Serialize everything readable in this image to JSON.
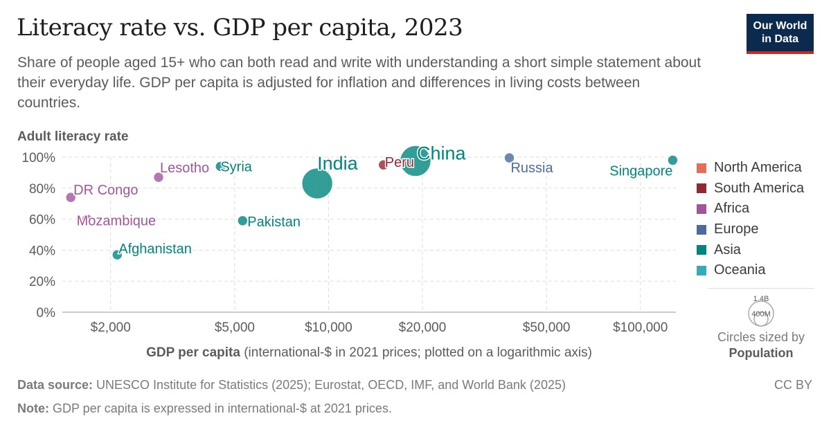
{
  "header": {
    "title": "Literacy rate vs. GDP per capita, 2023",
    "subtitle": "Share of people aged 15+ who can both read and write with understanding a short simple statement about their everyday life. GDP per capita is adjusted for inflation and differences in living costs between countries.",
    "logo_line1": "Our World",
    "logo_line2": "in Data"
  },
  "chart_data": {
    "type": "scatter",
    "title": "Literacy rate vs. GDP per capita, 2023",
    "ylabel": "Adult literacy rate",
    "xlabel_bold": "GDP per capita",
    "xlabel_rest": " (international-$ in 2021 prices; plotted on a logarithmic axis)",
    "x_scale": "log",
    "xlim": [
      1400,
      130000
    ],
    "ylim": [
      0,
      100
    ],
    "x_ticks": [
      {
        "value": 2000,
        "label": "$2,000"
      },
      {
        "value": 5000,
        "label": "$5,000"
      },
      {
        "value": 10000,
        "label": "$10,000"
      },
      {
        "value": 20000,
        "label": "$20,000"
      },
      {
        "value": 50000,
        "label": "$50,000"
      },
      {
        "value": 100000,
        "label": "$100,000"
      }
    ],
    "y_ticks": [
      {
        "value": 0,
        "label": "0%"
      },
      {
        "value": 20,
        "label": "20%"
      },
      {
        "value": 40,
        "label": "40%"
      },
      {
        "value": 60,
        "label": "60%"
      },
      {
        "value": 80,
        "label": "80%"
      },
      {
        "value": 100,
        "label": "100%"
      }
    ],
    "grid": true,
    "colors": {
      "North America": "#e56e5a",
      "South America": "#932834",
      "Africa": "#a2559c",
      "Europe": "#4c6a9c",
      "Asia": "#00847e",
      "Oceania": "#38aaba"
    },
    "legend": {
      "position": "right",
      "entries": [
        "North America",
        "South America",
        "Africa",
        "Europe",
        "Asia",
        "Oceania"
      ]
    },
    "labeled_points": [
      {
        "name": "India",
        "x": 9200,
        "y": 83,
        "group": "Asia",
        "size": "large"
      },
      {
        "name": "China",
        "x": 19000,
        "y": 97.5,
        "group": "Asia",
        "size": "large"
      },
      {
        "name": "Lesotho",
        "x": 2850,
        "y": 87,
        "group": "Africa"
      },
      {
        "name": "Syria",
        "x": 4500,
        "y": 94,
        "group": "Asia"
      },
      {
        "name": "Peru",
        "x": 15000,
        "y": 95,
        "group": "South America"
      },
      {
        "name": "Russia",
        "x": 38000,
        "y": 99.5,
        "group": "Europe"
      },
      {
        "name": "Singapore",
        "x": 127000,
        "y": 98,
        "group": "Asia"
      },
      {
        "name": "DR Congo",
        "x": 1490,
        "y": 74,
        "group": "Africa"
      },
      {
        "name": "Mozambique",
        "x": 1680,
        "y": 60,
        "group": "Africa"
      },
      {
        "name": "Pakistan",
        "x": 5300,
        "y": 59,
        "group": "Asia"
      },
      {
        "name": "Afghanistan",
        "x": 2100,
        "y": 37,
        "group": "Asia"
      }
    ],
    "size_legend": {
      "caption": "Circles sized by",
      "variable": "Population",
      "values": [
        "1.4B",
        "400M"
      ]
    }
  },
  "footer": {
    "source_label": "Data source:",
    "source_text": " UNESCO Institute for Statistics (2025); Eurostat, OECD, IMF, and World Bank (2025)",
    "note_label": "Note:",
    "note_text": " GDP per capita is expressed in international-$ at 2021 prices.",
    "license": "CC BY"
  }
}
